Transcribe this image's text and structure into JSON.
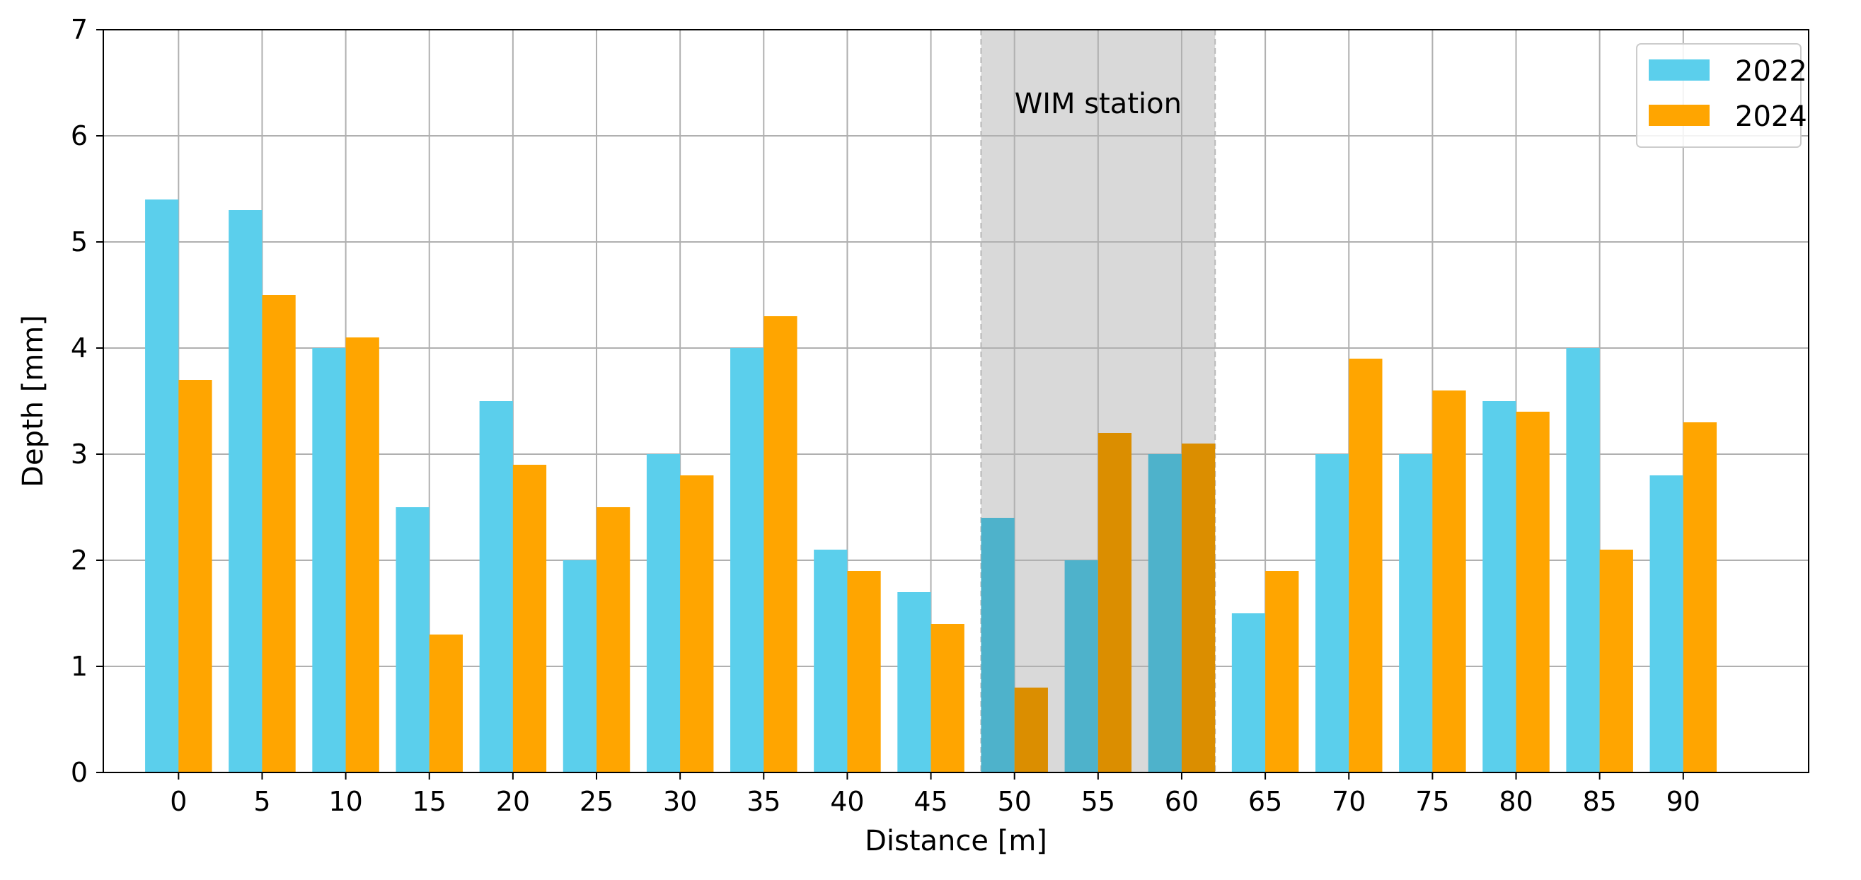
{
  "chart_data": {
    "type": "bar",
    "title": "",
    "xlabel": "Distance [m]",
    "ylabel": "Depth [mm]",
    "categories": [
      "0",
      "5",
      "10",
      "15",
      "20",
      "25",
      "30",
      "35",
      "40",
      "45",
      "50",
      "55",
      "60",
      "65",
      "70",
      "75",
      "80",
      "85",
      "90"
    ],
    "series": [
      {
        "name": "2022",
        "color": "#5bcfec",
        "values": [
          5.4,
          5.3,
          4.0,
          2.5,
          3.5,
          2.0,
          3.0,
          4.0,
          2.1,
          1.7,
          2.4,
          2.0,
          3.0,
          1.5,
          3.0,
          3.0,
          3.5,
          4.0,
          2.8
        ]
      },
      {
        "name": "2024",
        "color": "#ffa500",
        "values": [
          3.7,
          4.5,
          4.1,
          1.3,
          2.9,
          2.5,
          2.8,
          4.3,
          1.9,
          1.4,
          0.8,
          3.2,
          3.1,
          1.9,
          3.9,
          3.6,
          3.4,
          2.1,
          3.3
        ]
      }
    ],
    "ylim": [
      0,
      7
    ],
    "yticks": [
      0,
      1,
      2,
      3,
      4,
      5,
      6,
      7
    ],
    "xlim": [
      -4.5,
      97.5
    ],
    "grid": true,
    "legend_position": "top-right",
    "highlight_region": {
      "label": "WIM station",
      "x_range": [
        48,
        62
      ],
      "color": "#d9d9d9"
    }
  }
}
